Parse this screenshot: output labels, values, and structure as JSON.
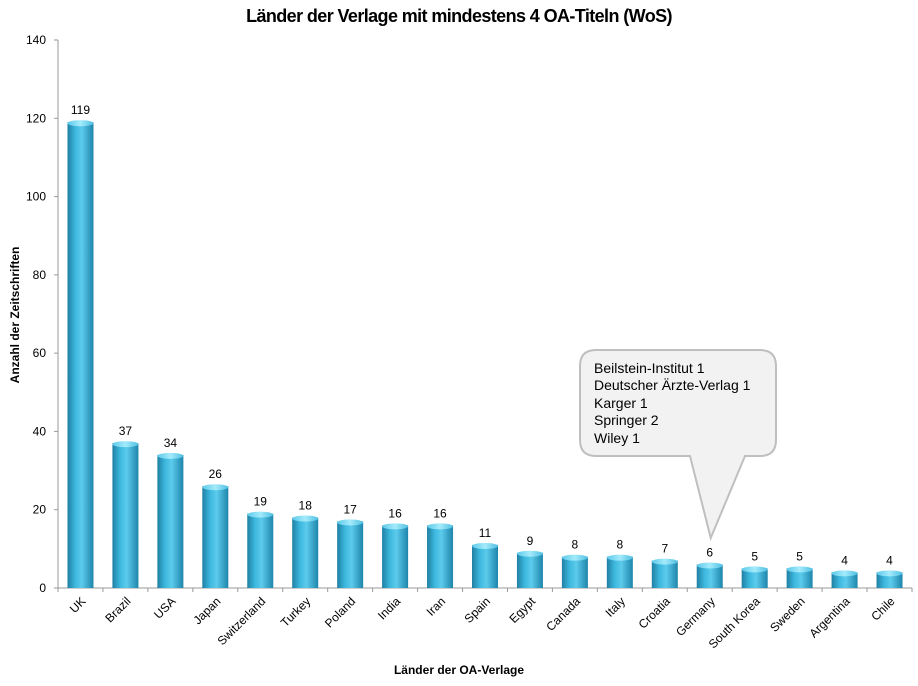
{
  "chart_data": {
    "type": "bar",
    "title": "Länder der Verlage mit mindestens 4 OA-Titeln (WoS)",
    "xlabel": "Länder der OA-Verlage",
    "ylabel": "Anzahl der Zeitschriften",
    "ylim": [
      0,
      140
    ],
    "yticks": [
      0,
      20,
      40,
      60,
      80,
      100,
      120,
      140
    ],
    "categories": [
      "UK",
      "Brazil",
      "USA",
      "Japan",
      "Switzerland",
      "Turkey",
      "Poland",
      "India",
      "Iran",
      "Spain",
      "Egypt",
      "Canada",
      "Italy",
      "Croatia",
      "Germany",
      "South Korea",
      "Sweden",
      "Argentina",
      "Chile"
    ],
    "values": [
      119,
      37,
      34,
      26,
      19,
      18,
      17,
      16,
      16,
      11,
      9,
      8,
      8,
      7,
      6,
      5,
      5,
      4,
      4
    ],
    "annotation": {
      "target_category": "Germany",
      "lines": [
        "Beilstein-Institut 1",
        "Deutscher Ärzte-Verlag 1",
        "Karger 1",
        "Springer 2",
        "Wiley 1"
      ]
    }
  },
  "colors": {
    "bar_dark": "#1f7fa3",
    "bar_mid": "#3db8de",
    "bar_light": "#7fdcf5",
    "callout_fill": "#f2f2f2",
    "callout_stroke": "#bfbfbf",
    "axis": "#9a9a9a"
  }
}
